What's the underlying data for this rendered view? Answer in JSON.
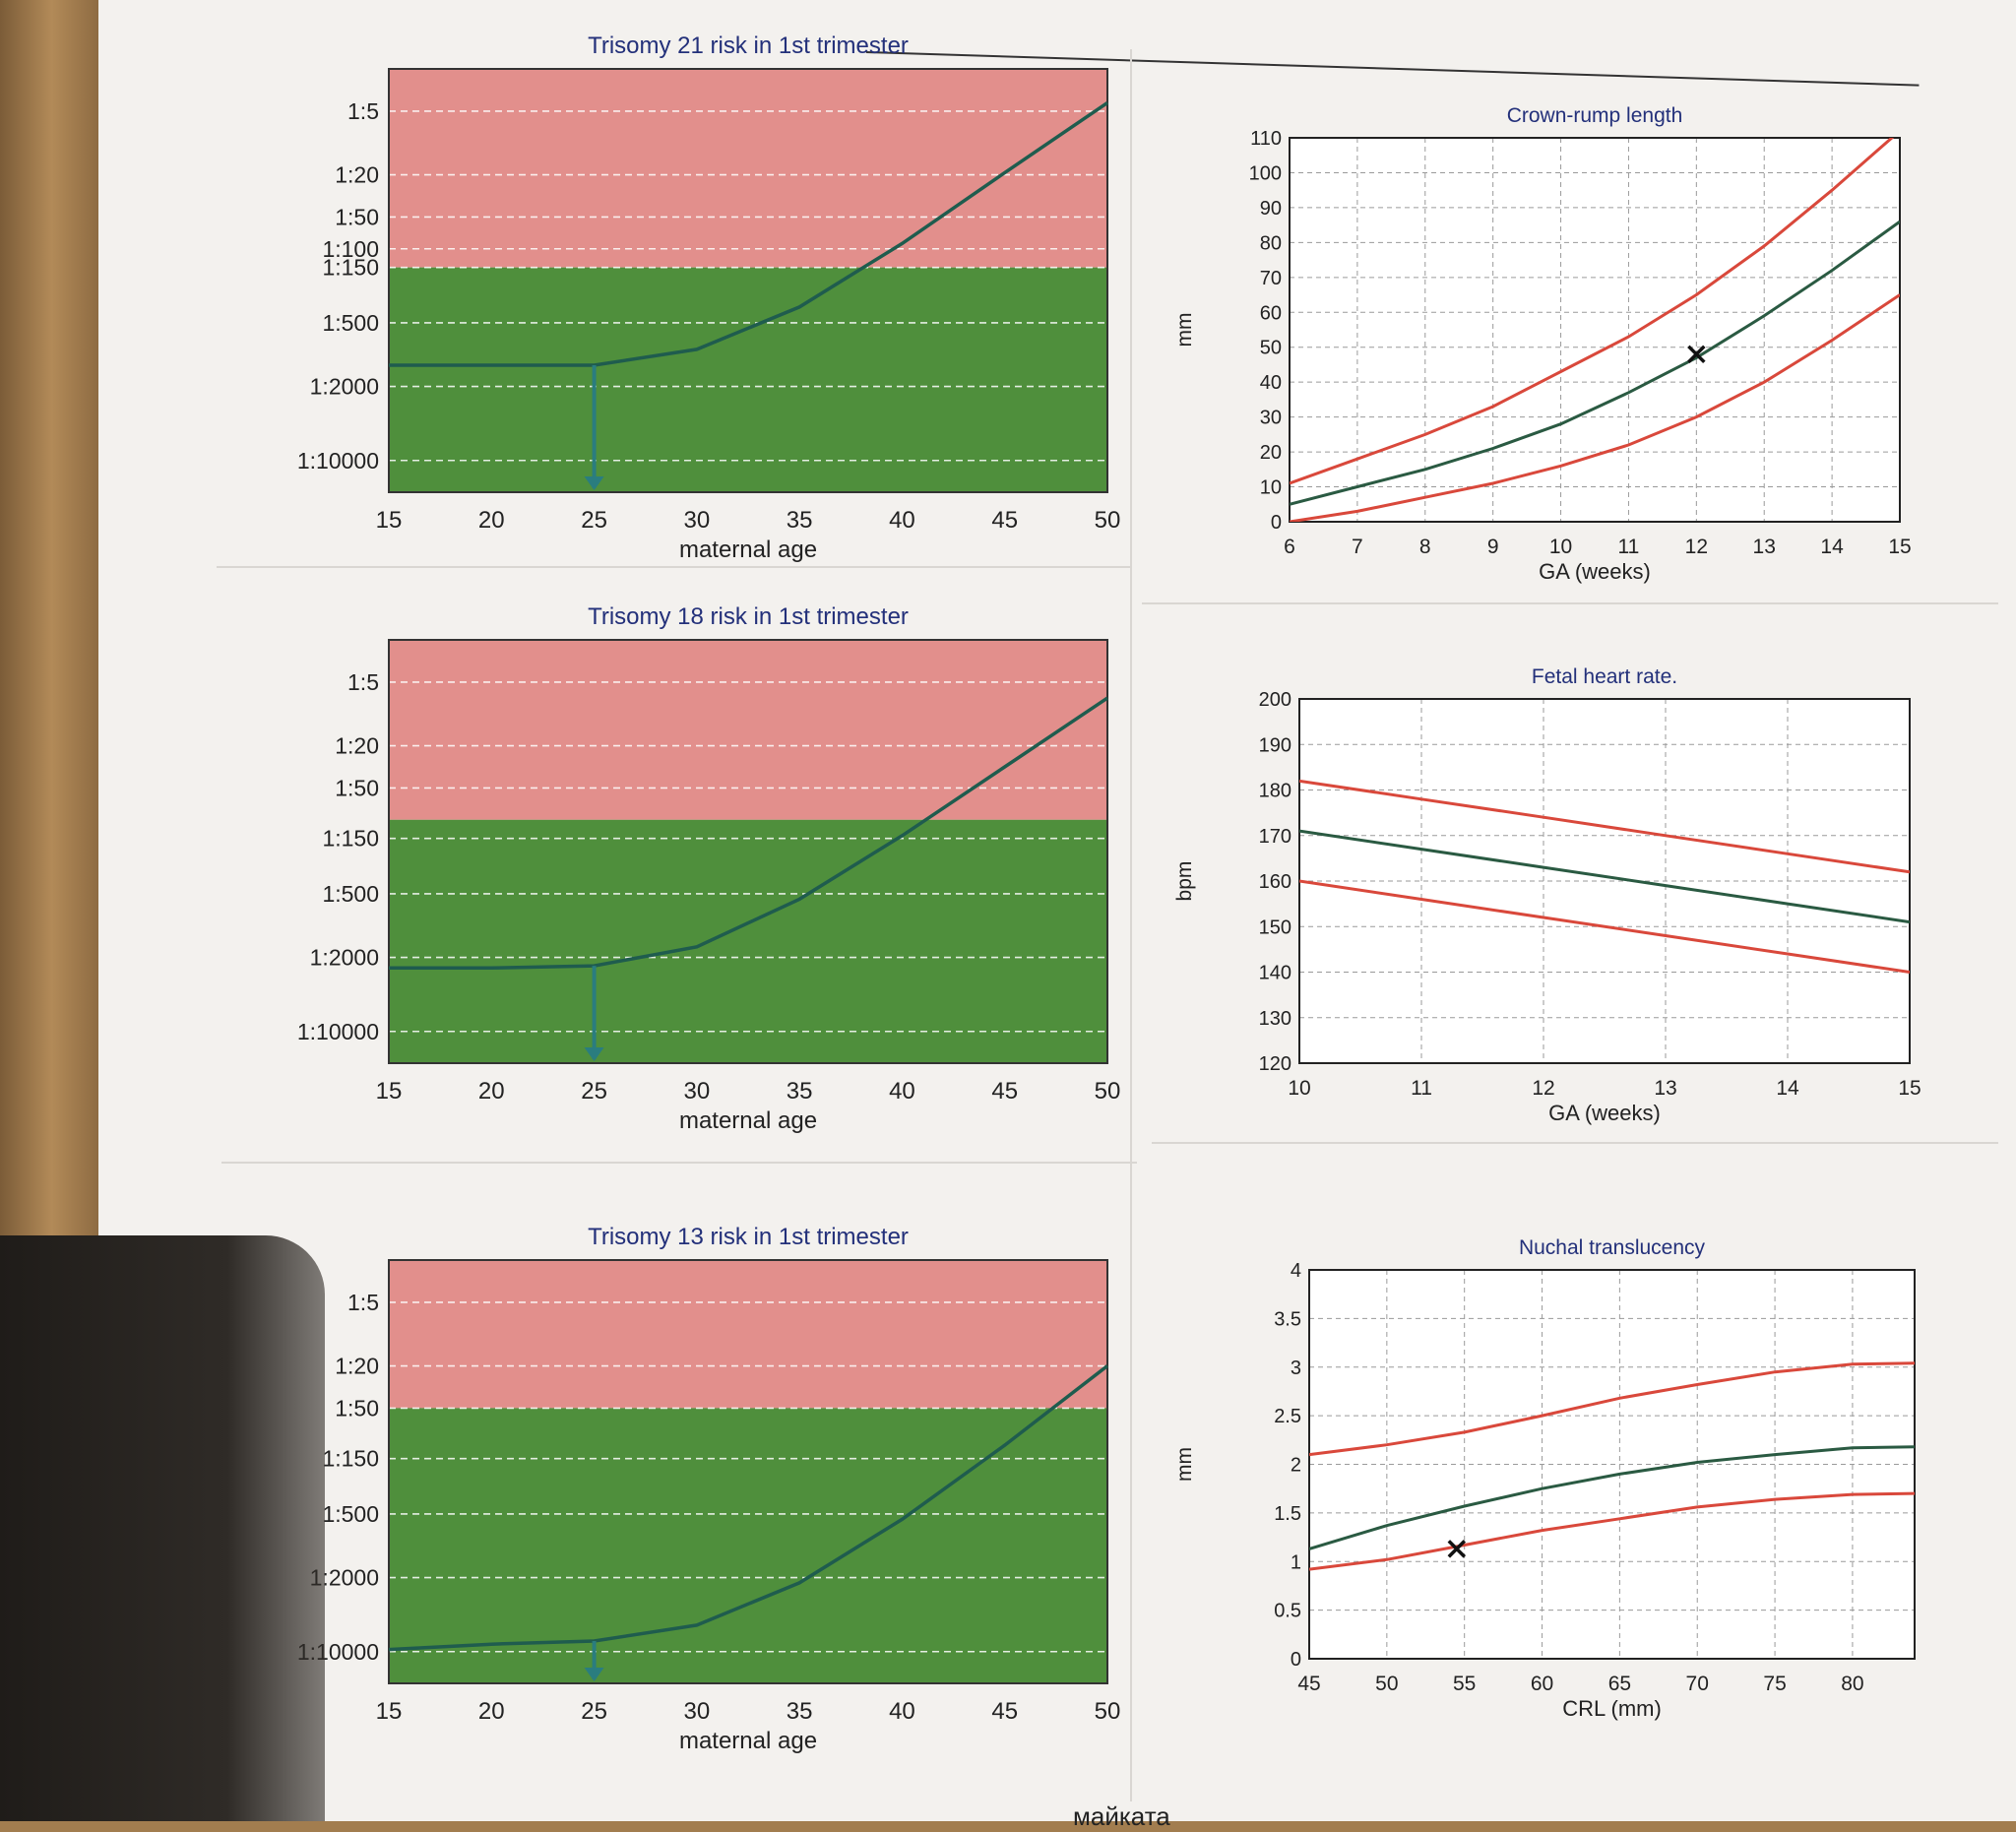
{
  "chart_data": [
    {
      "id": "t21",
      "type": "line",
      "title": "Trisomy 21 risk in 1st trimester",
      "xlabel": "maternal age",
      "ylabel": "",
      "x_ticks": [
        "15",
        "20",
        "25",
        "30",
        "35",
        "40",
        "45",
        "50"
      ],
      "xlim": [
        15,
        50
      ],
      "y_ticks": [
        "1:5",
        "1:20",
        "1:50",
        "1:100",
        "1:150",
        "1:500",
        "1:2000",
        "1:10000"
      ],
      "y_tick_values": [
        -0.699,
        -1.301,
        -1.699,
        -2.0,
        -2.176,
        -2.699,
        -3.301,
        -4.0
      ],
      "ylim": [
        -4.3,
        -0.3
      ],
      "risk_threshold": "1:150",
      "series": [
        {
          "name": "risk",
          "x": [
            15,
            20,
            25,
            30,
            35,
            40,
            45,
            50
          ],
          "y": [
            -3.1,
            -3.1,
            -3.1,
            -2.95,
            -2.55,
            -1.95,
            -1.28,
            -0.62
          ]
        }
      ],
      "marker_age": 25,
      "colors": {
        "high": "#e28f8c",
        "low": "#4f8f3c",
        "line": "#1f5c4e",
        "arrow": "#2a7d7f",
        "title": "#23307a"
      }
    },
    {
      "id": "t18",
      "type": "line",
      "title": "Trisomy 18 risk in 1st trimester",
      "xlabel": "maternal age",
      "ylabel": "",
      "x_ticks": [
        "15",
        "20",
        "25",
        "30",
        "35",
        "40",
        "45",
        "50"
      ],
      "xlim": [
        15,
        50
      ],
      "y_ticks": [
        "1:5",
        "1:20",
        "1:50",
        "1:150",
        "1:500",
        "1:2000",
        "1:10000"
      ],
      "y_tick_values": [
        -0.699,
        -1.301,
        -1.699,
        -2.176,
        -2.699,
        -3.301,
        -4.0
      ],
      "ylim": [
        -4.3,
        -0.3
      ],
      "risk_threshold": "1:100",
      "series": [
        {
          "name": "risk",
          "x": [
            15,
            20,
            25,
            30,
            35,
            40,
            45,
            50
          ],
          "y": [
            -3.4,
            -3.4,
            -3.38,
            -3.2,
            -2.75,
            -2.15,
            -1.5,
            -0.85
          ]
        }
      ],
      "marker_age": 25,
      "colors": {
        "high": "#e28f8c",
        "low": "#4f8f3c",
        "line": "#1f5c4e",
        "arrow": "#2a7d7f",
        "title": "#23307a"
      }
    },
    {
      "id": "t13",
      "type": "line",
      "title": "Trisomy 13 risk in 1st trimester",
      "xlabel": "maternal age",
      "ylabel": "",
      "x_ticks": [
        "15",
        "20",
        "25",
        "30",
        "35",
        "40",
        "45",
        "50"
      ],
      "xlim": [
        15,
        50
      ],
      "y_ticks": [
        "1:5",
        "1:20",
        "1:50",
        "1:150",
        "1:500",
        "1:2000",
        "1:10000"
      ],
      "y_tick_values": [
        -0.699,
        -1.301,
        -1.699,
        -2.176,
        -2.699,
        -3.301,
        -4.0
      ],
      "ylim": [
        -4.3,
        -0.3
      ],
      "risk_threshold": "1:50",
      "series": [
        {
          "name": "risk",
          "x": [
            15,
            20,
            25,
            30,
            35,
            40,
            45,
            50
          ],
          "y": [
            -3.98,
            -3.93,
            -3.9,
            -3.75,
            -3.35,
            -2.75,
            -2.05,
            -1.3
          ]
        }
      ],
      "marker_age": 25,
      "colors": {
        "high": "#e28f8c",
        "low": "#4f8f3c",
        "line": "#1f5c4e",
        "arrow": "#2a7d7f",
        "title": "#23307a"
      }
    },
    {
      "id": "crl",
      "type": "line",
      "title": "Crown-rump length",
      "xlabel": "GA (weeks)",
      "ylabel": "mm",
      "x_ticks": [
        "6",
        "7",
        "8",
        "9",
        "10",
        "11",
        "12",
        "13",
        "14",
        "15"
      ],
      "xlim": [
        6,
        15
      ],
      "y_ticks": [
        "0",
        "10",
        "20",
        "30",
        "40",
        "50",
        "60",
        "70",
        "80",
        "90",
        "100",
        "110"
      ],
      "ylim": [
        0,
        110
      ],
      "series": [
        {
          "name": "upper",
          "x": [
            6,
            7,
            8,
            9,
            10,
            11,
            12,
            13,
            14,
            15
          ],
          "y": [
            11,
            18,
            25,
            33,
            43,
            53,
            65,
            79,
            95,
            112
          ]
        },
        {
          "name": "median",
          "x": [
            6,
            7,
            8,
            9,
            10,
            11,
            12,
            13,
            14,
            15
          ],
          "y": [
            5,
            10,
            15,
            21,
            28,
            37,
            47,
            59,
            72,
            86
          ]
        },
        {
          "name": "lower",
          "x": [
            6,
            7,
            8,
            9,
            10,
            11,
            12,
            13,
            14,
            15
          ],
          "y": [
            0,
            3,
            7,
            11,
            16,
            22,
            30,
            40,
            52,
            65
          ]
        }
      ],
      "marker": {
        "x": 12.0,
        "y": 48
      },
      "colors": {
        "title": "#23307a",
        "upper": "#d9483b",
        "median": "#2a5a42",
        "lower": "#d9483b"
      }
    },
    {
      "id": "fhr",
      "type": "line",
      "title": "Fetal heart rate.",
      "xlabel": "GA (weeks)",
      "ylabel": "bpm",
      "x_ticks": [
        "10",
        "11",
        "12",
        "13",
        "14",
        "15"
      ],
      "xlim": [
        10,
        15
      ],
      "y_ticks": [
        "120",
        "130",
        "140",
        "150",
        "160",
        "170",
        "180",
        "190",
        "200"
      ],
      "ylim": [
        120,
        200
      ],
      "series": [
        {
          "name": "upper",
          "x": [
            10,
            11,
            12,
            13,
            14,
            15
          ],
          "y": [
            182,
            178,
            174,
            170,
            166,
            162
          ]
        },
        {
          "name": "median",
          "x": [
            10,
            11,
            12,
            13,
            14,
            15
          ],
          "y": [
            171,
            167,
            163,
            159,
            155,
            151
          ]
        },
        {
          "name": "lower",
          "x": [
            10,
            11,
            12,
            13,
            14,
            15
          ],
          "y": [
            160,
            156,
            152,
            148,
            144,
            140
          ]
        }
      ],
      "colors": {
        "title": "#23307a",
        "upper": "#d9483b",
        "median": "#2a5a42",
        "lower": "#d9483b"
      }
    },
    {
      "id": "nt",
      "type": "line",
      "title": "Nuchal translucency",
      "xlabel": "CRL (mm)",
      "ylabel": "mm",
      "x_ticks": [
        "45",
        "50",
        "55",
        "60",
        "65",
        "70",
        "75",
        "80"
      ],
      "xlim": [
        45,
        84
      ],
      "y_ticks": [
        "0",
        "0.5",
        "1",
        "1.5",
        "2",
        "2.5",
        "3",
        "3.5",
        "4"
      ],
      "ylim": [
        0,
        4
      ],
      "series": [
        {
          "name": "upper",
          "x": [
            45,
            50,
            55,
            60,
            65,
            70,
            75,
            80,
            84
          ],
          "y": [
            2.1,
            2.2,
            2.33,
            2.5,
            2.68,
            2.82,
            2.95,
            3.03,
            3.04
          ]
        },
        {
          "name": "median",
          "x": [
            45,
            50,
            55,
            60,
            65,
            70,
            75,
            80,
            84
          ],
          "y": [
            1.13,
            1.37,
            1.57,
            1.75,
            1.9,
            2.02,
            2.1,
            2.17,
            2.18
          ]
        },
        {
          "name": "lower",
          "x": [
            45,
            50,
            55,
            60,
            65,
            70,
            75,
            80,
            84
          ],
          "y": [
            0.92,
            1.02,
            1.17,
            1.32,
            1.44,
            1.56,
            1.64,
            1.69,
            1.7
          ]
        }
      ],
      "marker": {
        "x": 54.5,
        "y": 1.13
      },
      "colors": {
        "title": "#23307a",
        "upper": "#d9483b",
        "median": "#2a5a42",
        "lower": "#d9483b"
      }
    }
  ],
  "footer_text": "майката"
}
